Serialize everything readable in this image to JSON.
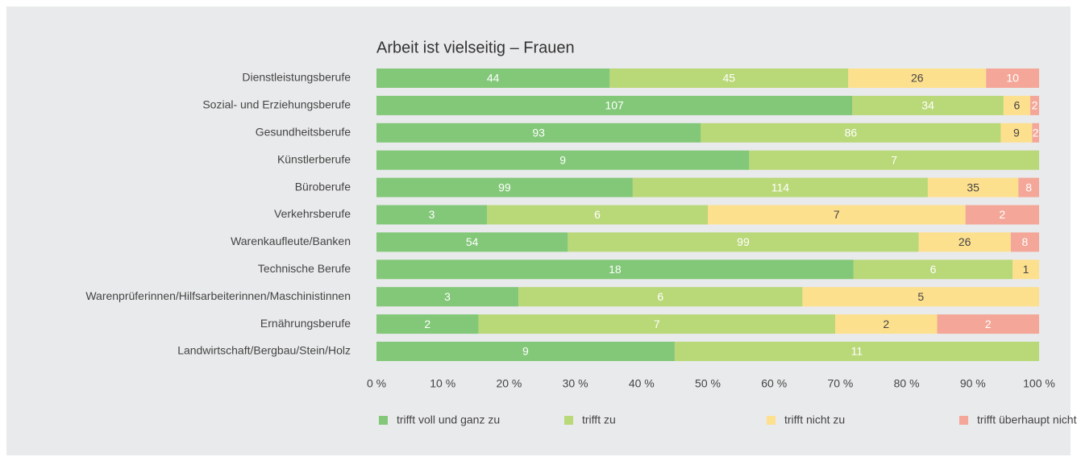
{
  "chart_data": {
    "type": "bar100h",
    "title": "Arbeit ist vielseitig – Frauen",
    "categories": [
      "Dienstleistungsberufe",
      "Sozial- und Erziehungsberufe",
      "Gesundheitsberufe",
      "Künstlerberufe",
      "Büroberufe",
      "Verkehrsberufe",
      "Warenkaufleute/Banken",
      "Technische Berufe",
      "Warenprüferinnen/Hilfsarbeiterinnen/Maschinistinnen",
      "Ernährungsberufe",
      "Landwirtschaft/Bergbau/Stein/Holz"
    ],
    "series": [
      {
        "name": "trifft voll und ganz zu",
        "color": "#82c878",
        "values": [
          44,
          107,
          93,
          9,
          99,
          3,
          54,
          18,
          3,
          2,
          9
        ]
      },
      {
        "name": "trifft zu",
        "color": "#b9d878",
        "values": [
          45,
          34,
          86,
          7,
          114,
          6,
          99,
          6,
          6,
          7,
          11
        ]
      },
      {
        "name": "trifft nicht zu",
        "color": "#fde08e",
        "values": [
          26,
          6,
          9,
          null,
          35,
          7,
          26,
          1,
          5,
          2,
          null
        ]
      },
      {
        "name": "trifft überhaupt nicht zu",
        "color": "#f4a798",
        "values": [
          10,
          2,
          2,
          null,
          8,
          2,
          8,
          null,
          null,
          2,
          null
        ]
      }
    ],
    "xlim": [
      0,
      100
    ],
    "xticks": [
      {
        "value": 0,
        "label": "0 %"
      },
      {
        "value": 10,
        "label": "10 %"
      },
      {
        "value": 20,
        "label": "20 %"
      },
      {
        "value": 30,
        "label": "30 %"
      },
      {
        "value": 40,
        "label": "40 %"
      },
      {
        "value": 50,
        "label": "50 %"
      },
      {
        "value": 60,
        "label": "60 %"
      },
      {
        "value": 70,
        "label": "70 %"
      },
      {
        "value": 80,
        "label": "80 %"
      },
      {
        "value": 90,
        "label": "90 %"
      },
      {
        "value": 100,
        "label": "100 %"
      }
    ]
  }
}
